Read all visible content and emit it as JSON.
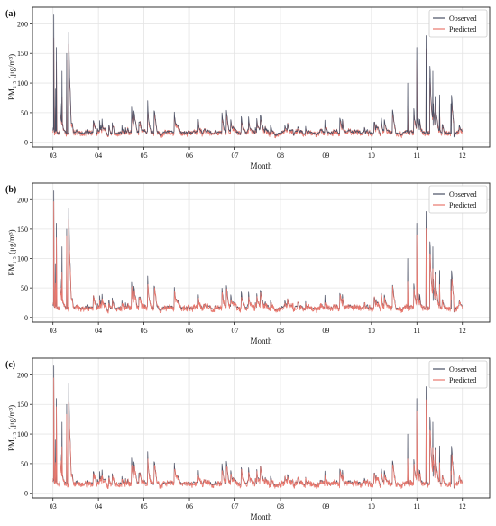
{
  "chart_data": [
    {
      "type": "line",
      "panel_label": "(a)",
      "xlabel": "Month",
      "ylabel": "PM₂.₅ (μg/m³)",
      "x_ticks": [
        "03",
        "04",
        "05",
        "06",
        "07",
        "08",
        "09",
        "10",
        "11",
        "12"
      ],
      "y_ticks": [
        0,
        50,
        100,
        150,
        200
      ],
      "ylim": [
        -8,
        228
      ],
      "grid": true,
      "legend_position": "top-right",
      "series": [
        {
          "name": "Observed",
          "color": "#4a4f63"
        },
        {
          "name": "Predicted",
          "color": "#e8786e"
        }
      ],
      "data_points": {
        "x_unit": "month (3 = start of March)",
        "values": [
          [
            3.0,
            30
          ],
          [
            3.02,
            215
          ],
          [
            3.05,
            90
          ],
          [
            3.08,
            160
          ],
          [
            3.12,
            35
          ],
          [
            3.2,
            120
          ],
          [
            3.3,
            150
          ],
          [
            3.35,
            185
          ],
          [
            3.4,
            20
          ],
          [
            4.0,
            25
          ],
          [
            4.5,
            60
          ],
          [
            5.0,
            55
          ],
          [
            5.5,
            60
          ],
          [
            6.0,
            55
          ],
          [
            6.5,
            45
          ],
          [
            7.0,
            40
          ],
          [
            7.5,
            35
          ],
          [
            8.0,
            35
          ],
          [
            8.5,
            28
          ],
          [
            9.0,
            30
          ],
          [
            9.5,
            30
          ],
          [
            10.0,
            25
          ],
          [
            10.5,
            45
          ],
          [
            10.8,
            100
          ],
          [
            11.0,
            160
          ],
          [
            11.1,
            60
          ],
          [
            11.2,
            180
          ],
          [
            11.35,
            120
          ],
          [
            11.5,
            80
          ],
          [
            11.75,
            65
          ],
          [
            12.0,
            30
          ]
        ]
      }
    },
    {
      "type": "line",
      "panel_label": "(b)",
      "xlabel": "Month",
      "ylabel": "PM₂.₅ (μg/m³)",
      "x_ticks": [
        "03",
        "04",
        "05",
        "06",
        "07",
        "08",
        "09",
        "10",
        "11",
        "12"
      ],
      "y_ticks": [
        0,
        50,
        100,
        150,
        200
      ],
      "ylim": [
        -8,
        228
      ],
      "grid": true,
      "legend_position": "top-right",
      "series": [
        {
          "name": "Observed",
          "color": "#4a4f63"
        },
        {
          "name": "Predicted",
          "color": "#e8786e"
        }
      ],
      "data_points": {
        "x_unit": "month (3 = start of March)",
        "values": [
          [
            3.0,
            30
          ],
          [
            3.02,
            215
          ],
          [
            3.05,
            90
          ],
          [
            3.08,
            160
          ],
          [
            3.12,
            35
          ],
          [
            3.2,
            120
          ],
          [
            3.3,
            150
          ],
          [
            3.35,
            185
          ],
          [
            3.4,
            20
          ],
          [
            4.0,
            25
          ],
          [
            4.5,
            60
          ],
          [
            5.0,
            55
          ],
          [
            5.5,
            60
          ],
          [
            6.0,
            55
          ],
          [
            6.5,
            45
          ],
          [
            7.0,
            40
          ],
          [
            7.5,
            35
          ],
          [
            8.0,
            35
          ],
          [
            8.5,
            28
          ],
          [
            9.0,
            30
          ],
          [
            9.5,
            30
          ],
          [
            10.0,
            25
          ],
          [
            10.5,
            45
          ],
          [
            10.8,
            100
          ],
          [
            11.0,
            160
          ],
          [
            11.1,
            60
          ],
          [
            11.2,
            180
          ],
          [
            11.35,
            120
          ],
          [
            11.5,
            80
          ],
          [
            11.75,
            65
          ],
          [
            12.0,
            30
          ]
        ]
      }
    },
    {
      "type": "line",
      "panel_label": "(c)",
      "xlabel": "Month",
      "ylabel": "PM₂.₅ (μg/m³)",
      "x_ticks": [
        "03",
        "04",
        "05",
        "06",
        "07",
        "08",
        "09",
        "10",
        "11",
        "12"
      ],
      "y_ticks": [
        0,
        50,
        100,
        150,
        200
      ],
      "ylim": [
        -8,
        228
      ],
      "grid": true,
      "legend_position": "top-right",
      "series": [
        {
          "name": "Observed",
          "color": "#4a4f63"
        },
        {
          "name": "Predicted",
          "color": "#e8786e"
        }
      ],
      "data_points": {
        "x_unit": "month (3 = start of March)",
        "values": [
          [
            3.0,
            30
          ],
          [
            3.02,
            215
          ],
          [
            3.05,
            90
          ],
          [
            3.08,
            160
          ],
          [
            3.12,
            35
          ],
          [
            3.2,
            120
          ],
          [
            3.3,
            150
          ],
          [
            3.35,
            185
          ],
          [
            3.4,
            20
          ],
          [
            4.0,
            25
          ],
          [
            4.5,
            60
          ],
          [
            5.0,
            55
          ],
          [
            5.5,
            60
          ],
          [
            6.0,
            55
          ],
          [
            6.5,
            45
          ],
          [
            7.0,
            40
          ],
          [
            7.5,
            35
          ],
          [
            8.0,
            35
          ],
          [
            8.5,
            28
          ],
          [
            9.0,
            30
          ],
          [
            9.5,
            30
          ],
          [
            10.0,
            25
          ],
          [
            10.5,
            45
          ],
          [
            10.8,
            100
          ],
          [
            11.0,
            160
          ],
          [
            11.1,
            60
          ],
          [
            11.2,
            180
          ],
          [
            11.35,
            120
          ],
          [
            11.5,
            80
          ],
          [
            11.75,
            65
          ],
          [
            12.0,
            30
          ]
        ]
      }
    }
  ]
}
